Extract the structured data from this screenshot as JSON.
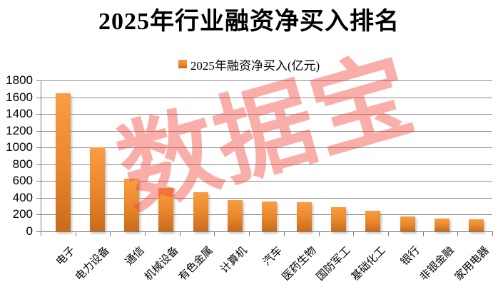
{
  "title": "2025年行业融资净买入排名",
  "legend": {
    "label": "2025年融资净买入(亿元)"
  },
  "watermark": "数据宝",
  "colors": {
    "bar_top": "#FA9D42",
    "bar_bottom": "#C96B1C",
    "gridline": "#8C8C8C",
    "axis": "#7F7F7F",
    "watermark": "rgba(240,62,50,0.42)",
    "text": "#000000"
  },
  "chart_data": {
    "type": "bar",
    "title": "2025年行业融资净买入排名",
    "series_name": "2025年融资净买入(亿元)",
    "categories": [
      "电子",
      "电力设备",
      "通信",
      "机械设备",
      "有色金属",
      "计算机",
      "汽车",
      "医药生物",
      "国防军工",
      "基础化工",
      "银行",
      "非银金融",
      "家用电器"
    ],
    "values": [
      1650,
      1000,
      625,
      515,
      465,
      375,
      360,
      350,
      285,
      245,
      180,
      155,
      145
    ],
    "xlabel": "",
    "ylabel": "",
    "ylim": [
      0,
      1800
    ],
    "ytick_step": 200,
    "yticks": [
      0,
      200,
      400,
      600,
      800,
      1000,
      1200,
      1400,
      1600,
      1800
    ],
    "grid": true,
    "legend_position": "top-center",
    "watermark": "数据宝"
  }
}
